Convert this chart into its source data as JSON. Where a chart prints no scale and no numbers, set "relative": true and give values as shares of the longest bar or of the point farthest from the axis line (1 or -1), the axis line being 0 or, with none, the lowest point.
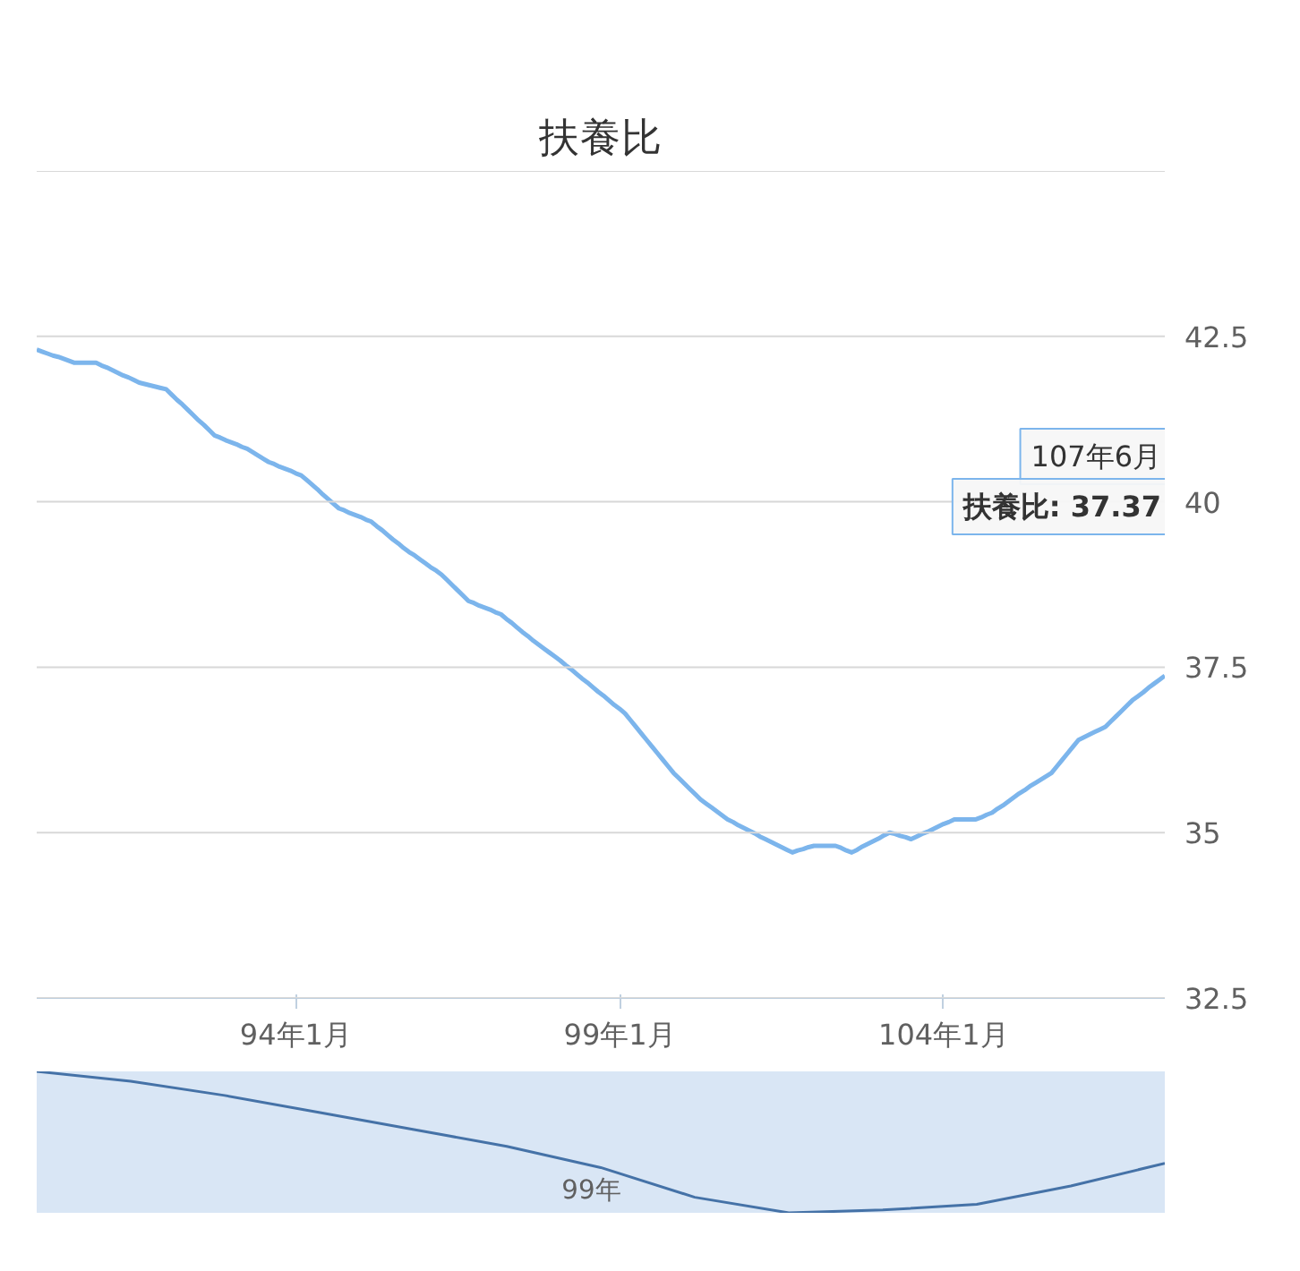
{
  "chart_data": [
    {
      "type": "line",
      "title": "扶養比",
      "categories": [
        null,
        null,
        null,
        null,
        null,
        null,
        null,
        null,
        null,
        null,
        null,
        null,
        null,
        null,
        null,
        null,
        null,
        null,
        null,
        null,
        null,
        null,
        null,
        null,
        null,
        null,
        null,
        null,
        null,
        null,
        null,
        null,
        null,
        null,
        null,
        null,
        null,
        null,
        null,
        null,
        null,
        null,
        null,
        null,
        null,
        null,
        null,
        null,
        "94年1月",
        null,
        null,
        null,
        null,
        null,
        null,
        null,
        null,
        null,
        null,
        null,
        null,
        null,
        null,
        null,
        null,
        null,
        null,
        null,
        null,
        null,
        null,
        null,
        null,
        null,
        null,
        null,
        null,
        null,
        null,
        null,
        null,
        null,
        null,
        null,
        null,
        null,
        null,
        null,
        null,
        null,
        null,
        null,
        null,
        null,
        null,
        null,
        null,
        null,
        null,
        null,
        null,
        null,
        null,
        null,
        null,
        null,
        null,
        null,
        "99年1月",
        null,
        null,
        null,
        null,
        null,
        null,
        null,
        null,
        null,
        null,
        null,
        null,
        null,
        null,
        null,
        null,
        null,
        null,
        null,
        null,
        null,
        null,
        null,
        null,
        null,
        null,
        null,
        null,
        null,
        null,
        null,
        null,
        null,
        null,
        null,
        null,
        null,
        null,
        null,
        null,
        null,
        null,
        null,
        null,
        null,
        null,
        null,
        null,
        null,
        null,
        null,
        null,
        null,
        null,
        null,
        null,
        null,
        null,
        null,
        "104年1月",
        null,
        null,
        null,
        null,
        null,
        null,
        null,
        null,
        null,
        null,
        null,
        null,
        null,
        null,
        null,
        null,
        null,
        null,
        null,
        null,
        null,
        null,
        null,
        null,
        null,
        null,
        null,
        null,
        null,
        null,
        null,
        null,
        null,
        null,
        null,
        null,
        null,
        null,
        null,
        null,
        null
      ],
      "series": [
        {
          "color": "#7cb5ec",
          "values": [
            42.3,
            42.27,
            42.24,
            42.21,
            42.19,
            42.16,
            42.13,
            42.1,
            42.1,
            42.1,
            42.1,
            42.1,
            42.06,
            42.03,
            41.99,
            41.95,
            41.91,
            41.88,
            41.84,
            41.8,
            41.78,
            41.76,
            41.74,
            41.72,
            41.7,
            41.62,
            41.54,
            41.47,
            41.39,
            41.31,
            41.23,
            41.16,
            41.08,
            41.0,
            40.97,
            40.93,
            40.9,
            40.87,
            40.83,
            40.8,
            40.75,
            40.7,
            40.65,
            40.6,
            40.57,
            40.53,
            40.5,
            40.47,
            40.43,
            40.4,
            40.33,
            40.26,
            40.19,
            40.11,
            40.04,
            39.97,
            39.9,
            39.87,
            39.83,
            39.8,
            39.77,
            39.73,
            39.7,
            39.63,
            39.57,
            39.5,
            39.43,
            39.37,
            39.3,
            39.24,
            39.19,
            39.13,
            39.07,
            39.01,
            38.96,
            38.9,
            38.82,
            38.74,
            38.66,
            38.58,
            38.5,
            38.47,
            38.43,
            38.4,
            38.37,
            38.33,
            38.3,
            38.23,
            38.17,
            38.1,
            38.03,
            37.97,
            37.9,
            37.84,
            37.78,
            37.72,
            37.66,
            37.6,
            37.53,
            37.47,
            37.4,
            37.33,
            37.27,
            37.2,
            37.13,
            37.07,
            37.0,
            36.93,
            36.87,
            36.8,
            36.7,
            36.6,
            36.5,
            36.4,
            36.3,
            36.2,
            36.1,
            36.0,
            35.9,
            35.82,
            35.74,
            35.66,
            35.58,
            35.5,
            35.44,
            35.38,
            35.32,
            35.26,
            35.2,
            35.16,
            35.11,
            35.07,
            35.03,
            34.99,
            34.94,
            34.9,
            34.86,
            34.82,
            34.78,
            34.74,
            34.7,
            34.73,
            34.75,
            34.78,
            34.8,
            34.8,
            34.8,
            34.8,
            34.8,
            34.77,
            34.73,
            34.7,
            34.74,
            34.79,
            34.83,
            34.87,
            34.91,
            34.96,
            35.0,
            34.98,
            34.95,
            34.93,
            34.9,
            34.94,
            34.98,
            35.01,
            35.05,
            35.09,
            35.13,
            35.16,
            35.2,
            35.2,
            35.2,
            35.2,
            35.2,
            35.23,
            35.27,
            35.3,
            35.36,
            35.41,
            35.47,
            35.53,
            35.59,
            35.64,
            35.7,
            35.75,
            35.8,
            35.85,
            35.9,
            36.0,
            36.1,
            36.2,
            36.3,
            36.4,
            36.44,
            36.48,
            36.52,
            36.56,
            36.6,
            36.68,
            36.76,
            36.84,
            36.92,
            37.0,
            37.06,
            37.12,
            37.19,
            37.25,
            37.31,
            37.37
          ]
        }
      ],
      "ylim": [
        32.5,
        45
      ],
      "yticks": [
        32.5,
        35,
        37.5,
        40,
        42.5,
        {
          "value": 45,
          "label": null
        }
      ],
      "grid": "y",
      "line_style": "solid",
      "annotations": [
        "107年6月",
        "扶養比: 37.37"
      ]
    },
    {
      "type": "line",
      "relative": true,
      "categories": [
        null,
        null,
        null,
        null,
        null,
        null,
        null,
        null,
        null,
        null,
        null,
        null,
        null
      ],
      "series": [
        {
          "color": "#4572a7",
          "values": [
            1.0,
            0.93,
            0.83,
            0.71,
            0.59,
            0.47,
            0.32,
            0.11,
            0,
            0.02,
            0.06,
            0.19,
            0.35
          ]
        }
      ],
      "line_style": "solid",
      "annotations": [
        "99年"
      ]
    }
  ]
}
